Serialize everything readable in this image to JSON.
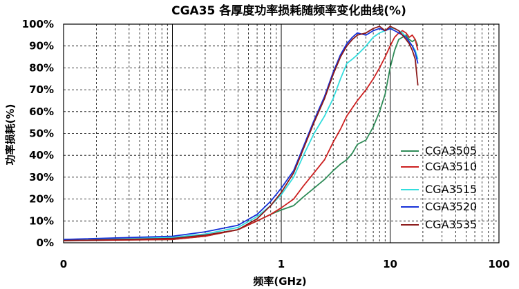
{
  "chart_data": {
    "type": "line",
    "title": "CGA35 各厚度功率损耗随频率变化曲线(%)",
    "xlabel": "频率(GHz)",
    "ylabel": "功率损耗(%)",
    "x_scale": "log",
    "xlim": [
      0.01,
      100
    ],
    "ylim": [
      0,
      100
    ],
    "x_ticks": [
      0.01,
      1,
      10,
      100
    ],
    "x_tick_labels": [
      "0",
      "1",
      "10",
      "100"
    ],
    "y_ticks": [
      0,
      10,
      20,
      30,
      40,
      50,
      60,
      70,
      80,
      90,
      100
    ],
    "y_tick_labels": [
      "0%",
      "10%",
      "20%",
      "30%",
      "40%",
      "50%",
      "60%",
      "70%",
      "80%",
      "90%",
      "100%"
    ],
    "grid": true,
    "legend_position": "lower-right",
    "series": [
      {
        "name": "CGA3505",
        "color": "#2e8b57",
        "x": [
          0.01,
          0.1,
          0.2,
          0.4,
          0.6,
          0.8,
          1.0,
          1.3,
          1.6,
          2.0,
          2.5,
          3.0,
          3.5,
          4.0,
          4.5,
          5.0,
          6.0,
          7.0,
          8.0,
          9.0,
          10,
          11,
          12,
          13,
          14,
          15,
          16,
          17,
          18
        ],
        "y": [
          1,
          1.5,
          3,
          6,
          10,
          13,
          15,
          17,
          21,
          25,
          29,
          33,
          36,
          38,
          41,
          45,
          47,
          53,
          60,
          68,
          80,
          88,
          93,
          94,
          95,
          93,
          92,
          93,
          90
        ]
      },
      {
        "name": "CGA3510",
        "color": "#cc2020",
        "x": [
          0.01,
          0.1,
          0.2,
          0.4,
          0.6,
          0.8,
          1.0,
          1.3,
          1.6,
          2.0,
          2.5,
          3.0,
          3.5,
          4.0,
          5.0,
          6.0,
          7.0,
          8.0,
          9.0,
          10,
          11,
          12,
          13,
          14,
          15,
          16,
          17,
          18
        ],
        "y": [
          1,
          1.5,
          3,
          6,
          10,
          13,
          16,
          20,
          26,
          32,
          38,
          46,
          52,
          58,
          65,
          70,
          75,
          80,
          85,
          90,
          94,
          96,
          97,
          96,
          94,
          95,
          93,
          88
        ]
      },
      {
        "name": "CGA3515",
        "color": "#33dddd",
        "x": [
          0.01,
          0.1,
          0.2,
          0.4,
          0.6,
          0.8,
          1.0,
          1.3,
          1.6,
          2.0,
          2.5,
          3.0,
          3.5,
          4.0,
          4.5,
          5.0,
          6.0,
          7.0,
          8.0,
          9.0,
          10,
          11,
          12,
          13,
          14,
          15,
          16,
          17,
          18
        ],
        "y": [
          1.5,
          2.5,
          4,
          7,
          12,
          17,
          22,
          30,
          40,
          50,
          58,
          66,
          75,
          82,
          84,
          86,
          90,
          94,
          96,
          97,
          98,
          98,
          97,
          96,
          94,
          92,
          90,
          88,
          84
        ]
      },
      {
        "name": "CGA3520",
        "color": "#1530d8",
        "x": [
          0.01,
          0.1,
          0.2,
          0.4,
          0.6,
          0.8,
          1.0,
          1.3,
          1.6,
          2.0,
          2.5,
          3.0,
          3.5,
          4.0,
          4.5,
          5.0,
          6.0,
          7.0,
          8.0,
          9.0,
          10,
          11,
          12,
          13,
          14,
          15,
          16,
          17,
          18
        ],
        "y": [
          1.5,
          3,
          5,
          8,
          13,
          19,
          25,
          33,
          44,
          56,
          67,
          78,
          86,
          91,
          94,
          96,
          95,
          97,
          98,
          97,
          98,
          97,
          96,
          95,
          94,
          92,
          90,
          87,
          82
        ]
      },
      {
        "name": "CGA3535",
        "color": "#8b1a1a",
        "x": [
          0.01,
          0.1,
          0.2,
          0.4,
          0.6,
          0.8,
          1.0,
          1.3,
          1.6,
          2.0,
          2.5,
          3.0,
          3.5,
          4.0,
          4.5,
          5.0,
          6.0,
          7.0,
          8.0,
          9.0,
          10,
          11,
          12,
          13,
          14,
          15,
          16,
          17,
          18
        ],
        "y": [
          1,
          2,
          3.5,
          6,
          11,
          17,
          23,
          32,
          43,
          55,
          66,
          77,
          85,
          90,
          93,
          95,
          96,
          98,
          99,
          97,
          99,
          98,
          97,
          95,
          93,
          91,
          88,
          84,
          72
        ]
      }
    ]
  }
}
